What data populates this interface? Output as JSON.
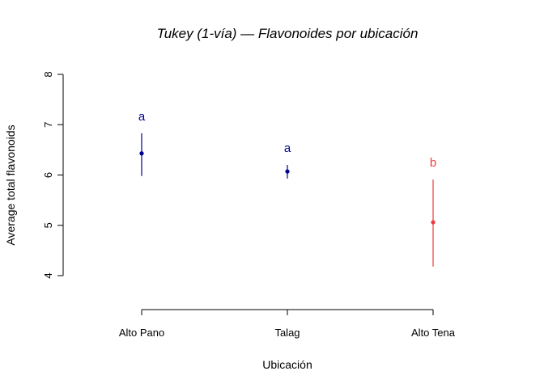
{
  "chart_data": {
    "type": "scatter",
    "title": "Tukey (1-vía) — Flavonoides por ubicación",
    "xlabel": "Ubicación",
    "ylabel": "Average total flavonoids",
    "categories": [
      "Alto Pano",
      "Talag",
      "Alto Tena"
    ],
    "means": [
      6.43,
      6.07,
      5.06
    ],
    "lower": [
      5.98,
      5.93,
      4.18
    ],
    "upper": [
      6.83,
      6.2,
      5.91
    ],
    "groups": [
      "a",
      "a",
      "b"
    ],
    "colors": [
      "#00008B",
      "#00008B",
      "#EE3B3B"
    ],
    "ylim": [
      4,
      8
    ],
    "yticks": [
      "4",
      "5",
      "6",
      "7",
      "8"
    ],
    "grid": false,
    "legend": "none"
  }
}
